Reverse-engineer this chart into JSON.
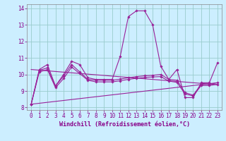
{
  "background_color": "#cceeff",
  "grid_color": "#99cccc",
  "line_color": "#992299",
  "xlabel": "Windchill (Refroidissement éolien,°C)",
  "xlim": [
    -0.5,
    23.5
  ],
  "ylim": [
    7.85,
    14.25
  ],
  "yticks": [
    8,
    9,
    10,
    11,
    12,
    13,
    14
  ],
  "xticks": [
    0,
    1,
    2,
    3,
    4,
    5,
    6,
    7,
    8,
    9,
    10,
    11,
    12,
    13,
    14,
    15,
    16,
    17,
    18,
    19,
    20,
    21,
    22,
    23
  ],
  "line1_x": [
    0,
    1,
    2,
    3,
    4,
    5,
    6,
    7,
    8,
    9,
    10,
    11,
    12,
    13,
    14,
    15,
    16,
    17,
    18,
    19,
    20,
    21,
    22,
    23
  ],
  "line1_y": [
    8.2,
    10.3,
    10.6,
    9.3,
    10.0,
    10.8,
    10.6,
    9.8,
    9.7,
    9.7,
    9.7,
    11.1,
    13.5,
    13.85,
    13.85,
    13.0,
    10.5,
    9.7,
    10.3,
    8.6,
    8.6,
    9.5,
    9.5,
    10.7
  ],
  "line2_x": [
    0,
    1,
    2,
    3,
    4,
    5,
    6,
    7,
    8,
    9,
    10,
    11,
    12,
    13,
    14,
    15,
    16,
    17,
    18,
    19,
    20,
    21,
    22,
    23
  ],
  "line2_y": [
    8.2,
    10.25,
    10.4,
    9.3,
    9.9,
    10.6,
    10.15,
    9.7,
    9.65,
    9.65,
    9.65,
    9.72,
    9.8,
    9.87,
    9.92,
    9.95,
    10.0,
    9.7,
    9.65,
    8.9,
    8.75,
    9.4,
    9.4,
    9.5
  ],
  "line3_x": [
    0,
    1,
    2,
    3,
    4,
    5,
    6,
    7,
    8,
    9,
    10,
    11,
    12,
    13,
    14,
    15,
    16,
    17,
    18,
    19,
    20,
    21,
    22,
    23
  ],
  "line3_y": [
    8.2,
    10.15,
    10.3,
    9.2,
    9.75,
    10.45,
    10.05,
    9.65,
    9.55,
    9.55,
    9.55,
    9.62,
    9.7,
    9.77,
    9.82,
    9.85,
    9.87,
    9.6,
    9.52,
    8.82,
    8.7,
    9.33,
    9.33,
    9.4
  ],
  "trend1_x": [
    0,
    23
  ],
  "trend1_y": [
    8.2,
    9.5
  ],
  "trend2_x": [
    0,
    23
  ],
  "trend2_y": [
    10.3,
    9.38
  ]
}
